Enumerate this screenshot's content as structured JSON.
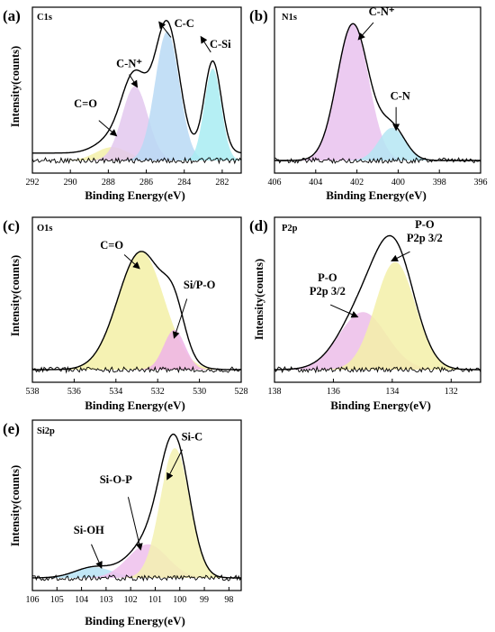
{
  "chart_data": [
    {
      "type": "area",
      "panel_label": "(a)",
      "element": "C1s",
      "xlabel": "Binding Energy(eV)",
      "ylabel": "Intensity(counts)",
      "xlim": [
        292,
        281
      ],
      "x_ticks": [
        292,
        290,
        288,
        286,
        284,
        282
      ],
      "envelope_baseline": 0.05,
      "peaks": [
        {
          "label": "C=O",
          "center": 287.8,
          "fwhm": 2.0,
          "height": 0.09,
          "color": "#f3f0a8"
        },
        {
          "label": "C-N⁺",
          "center": 286.6,
          "fwhm": 1.6,
          "height": 0.5,
          "color": "#e3c8ef"
        },
        {
          "label": "C-C",
          "center": 284.9,
          "fwhm": 1.5,
          "height": 0.87,
          "color": "#b9d9f5"
        },
        {
          "label": "C-Si",
          "center": 282.5,
          "fwhm": 1.05,
          "height": 0.62,
          "color": "#a8ecf2"
        }
      ],
      "annotations": [
        {
          "text": "C=O",
          "x": 289.2,
          "y": 0.36,
          "ax": 288.5,
          "ay": 0.27,
          "hx": 287.6,
          "hy": 0.17
        },
        {
          "text": "C-N⁺",
          "x": 286.9,
          "y": 0.63,
          "ax": 286.9,
          "ay": 0.58,
          "hx": 286.5,
          "hy": 0.5
        },
        {
          "text": "C-C",
          "x": 284.0,
          "y": 0.9,
          "ax": 284.7,
          "ay": 0.83,
          "hx": 285.3,
          "hy": 0.93
        },
        {
          "text": "C-Si",
          "x": 282.1,
          "y": 0.76,
          "ax": 282.6,
          "ay": 0.73,
          "hx": 283.1,
          "hy": 0.83
        }
      ]
    },
    {
      "type": "area",
      "panel_label": "(b)",
      "element": "N1s",
      "xlabel": "Binding Energy(eV)",
      "ylabel": "",
      "xlim": [
        406,
        396
      ],
      "x_ticks": [
        406,
        404,
        402,
        400,
        398,
        396
      ],
      "envelope_baseline": 0.0,
      "peaks": [
        {
          "label": "C-N⁺",
          "center": 402.2,
          "fwhm": 1.8,
          "height": 0.92,
          "color": "#e9c2ee"
        },
        {
          "label": "C-N",
          "center": 400.3,
          "fwhm": 1.5,
          "height": 0.22,
          "color": "#b5e6f3"
        }
      ],
      "annotations": [
        {
          "text": "C-N⁺",
          "x": 400.8,
          "y": 0.98,
          "ax": 401.2,
          "ay": 0.93,
          "hx": 401.9,
          "hy": 0.82
        },
        {
          "text": "C-N",
          "x": 399.9,
          "y": 0.41,
          "ax": 400.1,
          "ay": 0.36,
          "hx": 400.1,
          "hy": 0.21
        }
      ]
    },
    {
      "type": "area",
      "panel_label": "(c)",
      "element": "O1s",
      "xlabel": "Binding Energy(eV)",
      "ylabel": "Intensity(counts)",
      "xlim": [
        538,
        528
      ],
      "x_ticks": [
        538,
        536,
        534,
        532,
        530,
        528
      ],
      "envelope_baseline": 0.0,
      "peaks": [
        {
          "label": "C=O",
          "center": 532.8,
          "fwhm": 2.6,
          "height": 0.8,
          "color": "#f3f0a6"
        },
        {
          "label": "Si/P-O",
          "center": 531.2,
          "fwhm": 1.2,
          "height": 0.27,
          "color": "#efb4e8"
        }
      ],
      "annotations": [
        {
          "text": "C=O",
          "x": 534.2,
          "y": 0.82,
          "ax": 533.6,
          "ay": 0.78,
          "hx": 532.9,
          "hy": 0.69
        },
        {
          "text": "Si/P-O",
          "x": 530.0,
          "y": 0.55,
          "ax": 530.6,
          "ay": 0.48,
          "hx": 531.2,
          "hy": 0.22
        }
      ]
    },
    {
      "type": "area",
      "panel_label": "(d)",
      "element": "P2p",
      "xlabel": "Binding Energy(eV)",
      "ylabel": "Intensity(counts)",
      "xlim": [
        138,
        131
      ],
      "x_ticks": [
        138,
        136,
        134,
        132
      ],
      "envelope_baseline": 0.0,
      "peaks": [
        {
          "label": "P-O P2p 3/2",
          "center": 135.0,
          "fwhm": 1.9,
          "height": 0.39,
          "color": "#ecbde9"
        },
        {
          "label": "P-O P2p 3/2",
          "center": 133.9,
          "fwhm": 1.6,
          "height": 0.73,
          "color": "#f3f0a8"
        }
      ],
      "annotations": [
        {
          "text": "P-O",
          "text2": "P2p 3/2",
          "x": 136.2,
          "y": 0.6,
          "ax": 136.1,
          "ay": 0.44,
          "hx": 135.2,
          "hy": 0.36
        },
        {
          "text": "P-O",
          "text2": "P2p 3/2",
          "x": 132.9,
          "y": 0.96,
          "ax": 133.4,
          "ay": 0.8,
          "hx": 134.0,
          "hy": 0.74
        }
      ]
    },
    {
      "type": "area",
      "panel_label": "(e)",
      "element": "Si2p",
      "xlabel": "Binding Energy(eV)",
      "ylabel": "Intensity(counts)",
      "xlim": [
        106,
        97.5
      ],
      "x_ticks": [
        106,
        105,
        104,
        103,
        102,
        101,
        100,
        99,
        98
      ],
      "envelope_baseline": 0.0,
      "peaks": [
        {
          "label": "Si-OH",
          "center": 103.5,
          "fwhm": 1.8,
          "height": 0.07,
          "color": "#b6e3f4"
        },
        {
          "label": "Si-O-P",
          "center": 101.3,
          "fwhm": 1.9,
          "height": 0.22,
          "color": "#efbfec"
        },
        {
          "label": "Si-C",
          "center": 100.2,
          "fwhm": 1.4,
          "height": 0.85,
          "color": "#f3f1b0"
        }
      ],
      "annotations": [
        {
          "text": "Si-OH",
          "x": 103.7,
          "y": 0.29,
          "ax": 103.6,
          "ay": 0.22,
          "hx": 103.2,
          "hy": 0.07
        },
        {
          "text": "Si-O-P",
          "x": 102.6,
          "y": 0.62,
          "ax": 102.1,
          "ay": 0.53,
          "hx": 101.6,
          "hy": 0.19
        },
        {
          "text": "Si-C",
          "x": 99.5,
          "y": 0.9,
          "ax": 99.9,
          "ay": 0.84,
          "hx": 100.5,
          "hy": 0.65
        }
      ]
    }
  ]
}
